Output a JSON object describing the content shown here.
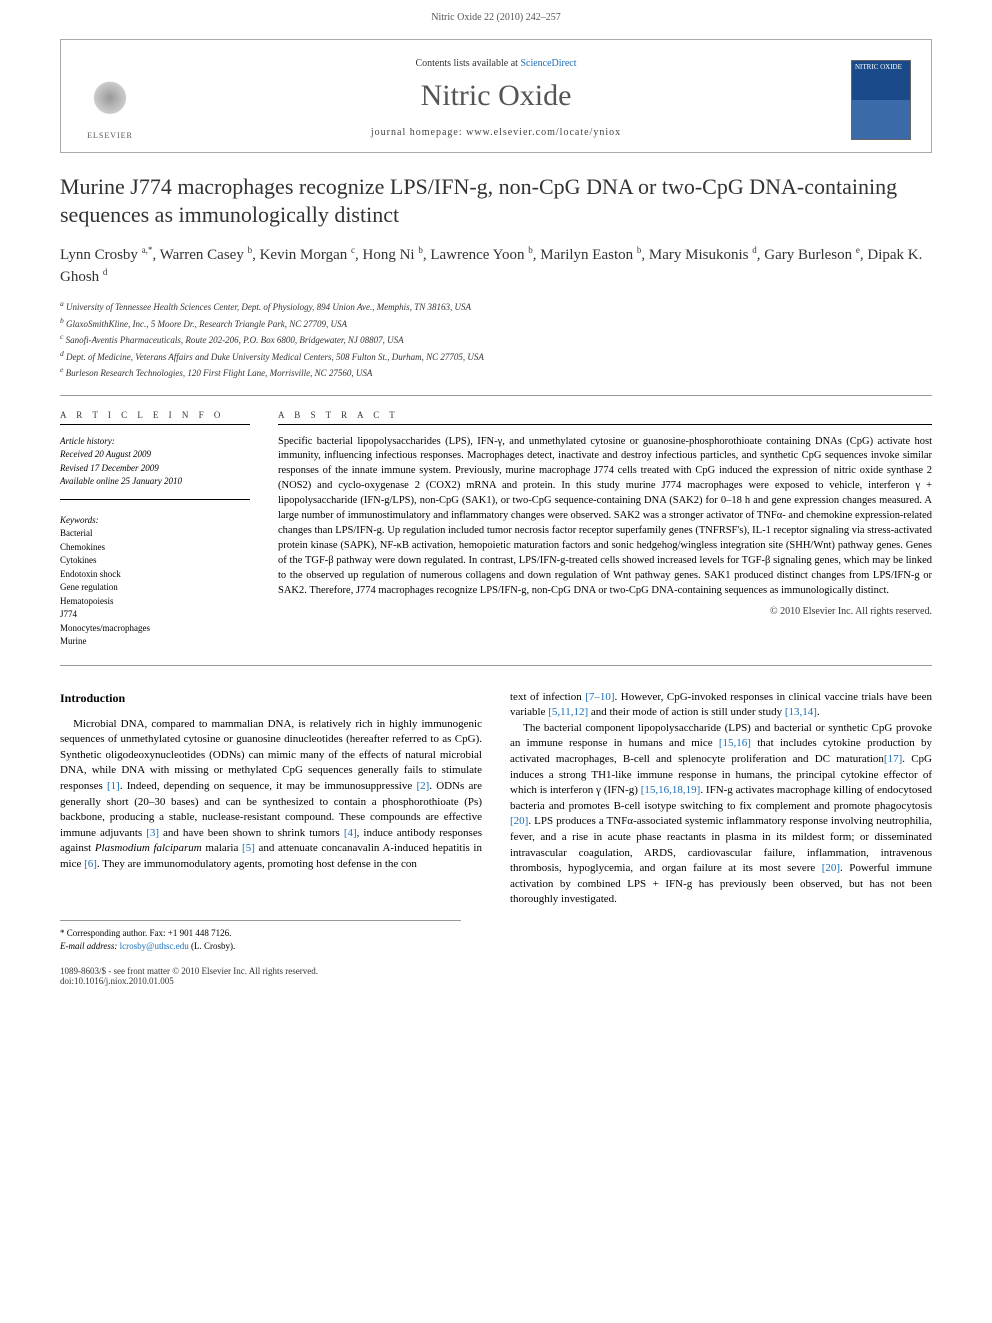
{
  "header": {
    "running": "Nitric Oxide 22 (2010) 242–257",
    "contents_line_pre": "Contents lists available at ",
    "sciencedirect": "ScienceDirect",
    "journal_title": "Nitric Oxide",
    "home_pre": "journal homepage: ",
    "home_url": "www.elsevier.com/locate/yniox",
    "elsevier": "ELSEVIER",
    "cover_text": "NITRIC OXIDE"
  },
  "article": {
    "title": "Murine J774 macrophages recognize LPS/IFN-g, non-CpG DNA or two-CpG DNA-containing sequences as immunologically distinct",
    "authors_html": "Lynn Crosby <sup>a,*</sup>, Warren Casey <sup>b</sup>, Kevin Morgan <sup>c</sup>, Hong Ni <sup>b</sup>, Lawrence Yoon <sup>b</sup>, Marilyn Easton <sup>b</sup>, Mary Misukonis <sup>d</sup>, Gary Burleson <sup>e</sup>, Dipak K. Ghosh <sup>d</sup>",
    "affiliations": [
      "a University of Tennessee Health Sciences Center, Dept. of Physiology, 894 Union Ave., Memphis, TN 38163, USA",
      "b GlaxoSmithKline, Inc., 5 Moore Dr., Research Triangle Park, NC 27709, USA",
      "c Sanofi-Aventis Pharmaceuticals, Route 202-206, P.O. Box 6800, Bridgewater, NJ 08807, USA",
      "d Dept. of Medicine, Veterans Affairs and Duke University Medical Centers, 508 Fulton St., Durham, NC 27705, USA",
      "e Burleson Research Technologies, 120 First Flight Lane, Morrisville, NC 27560, USA"
    ]
  },
  "info": {
    "heading": "A R T I C L E   I N F O",
    "history_label": "Article history:",
    "received": "Received 20 August 2009",
    "revised": "Revised 17 December 2009",
    "online": "Available online 25 January 2010",
    "keywords_label": "Keywords:",
    "keywords": [
      "Bacterial",
      "Chemokines",
      "Cytokines",
      "Endotoxin shock",
      "Gene regulation",
      "Hematopoiesis",
      "J774",
      "Monocytes/macrophages",
      "Murine"
    ]
  },
  "abstract": {
    "heading": "A B S T R A C T",
    "text": "Specific bacterial lipopolysaccharides (LPS), IFN-γ, and unmethylated cytosine or guanosine-phosphorothioate containing DNAs (CpG) activate host immunity, influencing infectious responses. Macrophages detect, inactivate and destroy infectious particles, and synthetic CpG sequences invoke similar responses of the innate immune system. Previously, murine macrophage J774 cells treated with CpG induced the expression of nitric oxide synthase 2 (NOS2) and cyclo-oxygenase 2 (COX2) mRNA and protein. In this study murine J774 macrophages were exposed to vehicle, interferon γ + lipopolysaccharide (IFN-g/LPS), non-CpG (SAK1), or two-CpG sequence-containing DNA (SAK2) for 0–18 h and gene expression changes measured. A large number of immunostimulatory and inflammatory changes were observed. SAK2 was a stronger activator of TNFα- and chemokine expression-related changes than LPS/IFN-g. Up regulation included tumor necrosis factor receptor superfamily genes (TNFRSF's), IL-1 receptor signaling via stress-activated protein kinase (SAPK), NF-κB activation, hemopoietic maturation factors and sonic hedgehog/wingless integration site (SHH/Wnt) pathway genes. Genes of the TGF-β pathway were down regulated. In contrast, LPS/IFN-g-treated cells showed increased levels for TGF-β signaling genes, which may be linked to the observed up regulation of numerous collagens and down regulation of Wnt pathway genes. SAK1 produced distinct changes from LPS/IFN-g or SAK2. Therefore, J774 macrophages recognize LPS/IFN-g, non-CpG DNA or two-CpG DNA-containing sequences as immunologically distinct.",
    "copyright": "© 2010 Elsevier Inc. All rights reserved."
  },
  "intro": {
    "heading": "Introduction",
    "p1": "Microbial DNA, compared to mammalian DNA, is relatively rich in highly immunogenic sequences of unmethylated cytosine or guanosine dinucleotides (hereafter referred to as CpG). Synthetic oligodeoxynucleotides (ODNs) can mimic many of the effects of natural microbial DNA, while DNA with missing or methylated CpG sequences generally fails to stimulate responses [1]. Indeed, depending on sequence, it may be immunosuppressive [2]. ODNs are generally short (20–30 bases) and can be synthesized to contain a phosphorothioate (Ps) backbone, producing a stable, nuclease-resistant compound. These compounds are effective immune adjuvants [3] and have been shown to shrink tumors [4], induce antibody responses against Plasmodium falciparum malaria [5] and attenuate concanavalin A-induced hepatitis in mice [6]. They are immunomodulatory agents, promoting host defense in the con",
    "p1b": "text of infection [7–10]. However, CpG-invoked responses in clinical vaccine trials have been variable [5,11,12] and their mode of action is still under study [13,14].",
    "p2": "The bacterial component lipopolysaccharide (LPS) and bacterial or synthetic CpG provoke an immune response in humans and mice [15,16] that includes cytokine production by activated macrophages, B-cell and splenocyte proliferation and DC maturation[17]. CpG induces a strong TH1-like immune response in humans, the principal cytokine effector of which is interferon γ (IFN-g) [15,16,18,19]. IFN-g activates macrophage killing of endocytosed bacteria and promotes B-cell isotype switching to fix complement and promote phagocytosis [20]. LPS produces a TNFα-associated systemic inflammatory response involving neutrophilia, fever, and a rise in acute phase reactants in plasma in its mildest form; or disseminated intravascular coagulation, ARDS, cardiovascular failure, inflammation, intravenous thrombosis, hypoglycemia, and organ failure at its most severe [20]. Powerful immune activation by combined LPS + IFN-g has previously been observed, but has not been thoroughly investigated."
  },
  "corr": {
    "line1": "* Corresponding author. Fax: +1 901 448 7126.",
    "line2_label": "E-mail address: ",
    "email": "lcrosby@uthsc.edu",
    "line2_tail": " (L. Crosby)."
  },
  "footer": {
    "line1": "1089-8603/$ - see front matter © 2010 Elsevier Inc. All rights reserved.",
    "line2": "doi:10.1016/j.niox.2010.01.005"
  },
  "colors": {
    "link": "#1a6db5",
    "text": "#000000",
    "muted": "#555555",
    "rule": "#999999"
  }
}
